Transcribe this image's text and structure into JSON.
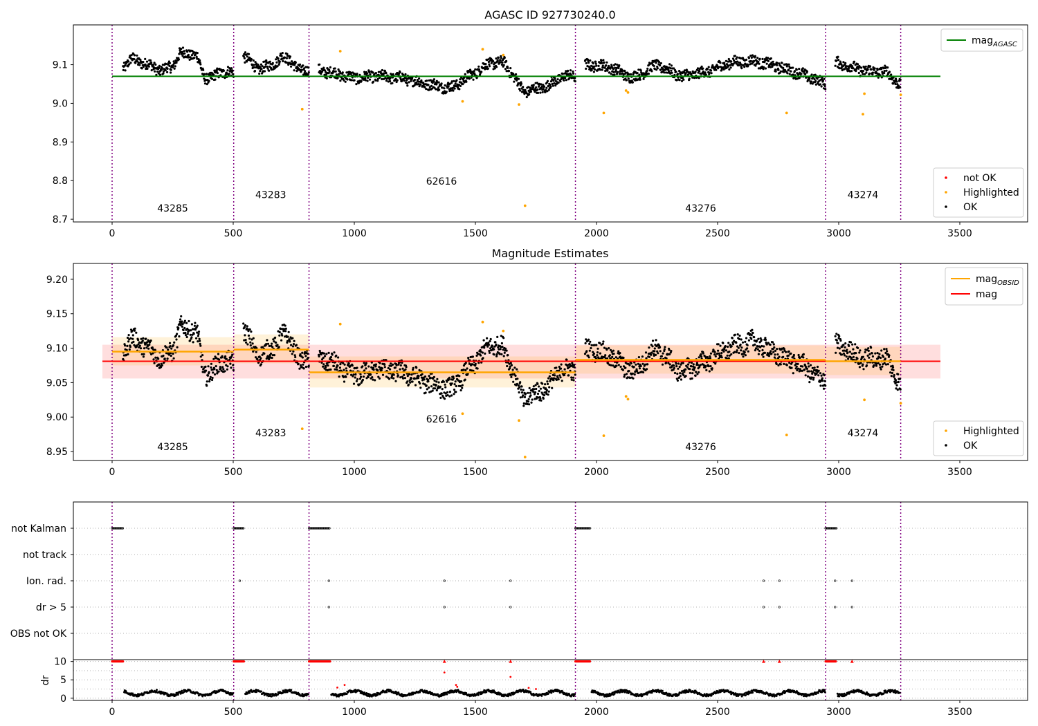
{
  "chart_data": [
    {
      "type": "scatter",
      "title": "AGASC ID 927730240.0",
      "xlim": [
        -160,
        3780
      ],
      "ylim": [
        8.693,
        9.203
      ],
      "xticks": [
        0,
        500,
        1000,
        1500,
        2000,
        2500,
        3000,
        3500
      ],
      "yticks": [
        8.7,
        8.8,
        8.9,
        9.0,
        9.1
      ],
      "obs_boundaries": [
        0,
        502,
        813,
        1913,
        2946,
        3256
      ],
      "obs_labels": [
        {
          "text": "43285",
          "x": 250,
          "y": 8.72
        },
        {
          "text": "43283",
          "x": 655,
          "y": 8.755
        },
        {
          "text": "62616",
          "x": 1360,
          "y": 8.79
        },
        {
          "text": "43276",
          "x": 2430,
          "y": 8.72
        },
        {
          "text": "43274",
          "x": 3100,
          "y": 8.755
        }
      ],
      "line": {
        "name": "mag_AGASC",
        "y": 9.07,
        "x": [
          0,
          3420
        ],
        "color": "#008000"
      },
      "highlighted": [
        [
          785,
          8.985
        ],
        [
          942,
          9.135
        ],
        [
          1447,
          9.005
        ],
        [
          1530,
          9.14
        ],
        [
          1615,
          9.125
        ],
        [
          1680,
          8.997
        ],
        [
          1705,
          8.735
        ],
        [
          2030,
          8.975
        ],
        [
          2122,
          9.033
        ],
        [
          2130,
          9.028
        ],
        [
          2785,
          8.975
        ],
        [
          3100,
          8.972
        ],
        [
          3106,
          9.025
        ],
        [
          3256,
          9.022
        ]
      ],
      "ok_trend": [
        [
          50,
          9.095
        ],
        [
          80,
          9.115
        ],
        [
          150,
          9.1
        ],
        [
          200,
          9.085
        ],
        [
          250,
          9.095
        ],
        [
          280,
          9.13
        ],
        [
          350,
          9.125
        ],
        [
          380,
          9.065
        ],
        [
          420,
          9.07
        ],
        [
          480,
          9.085
        ],
        [
          502,
          9.075
        ],
        [
          540,
          9.125
        ],
        [
          600,
          9.09
        ],
        [
          650,
          9.095
        ],
        [
          700,
          9.12
        ],
        [
          740,
          9.11
        ],
        [
          780,
          9.08
        ],
        [
          813,
          9.09
        ],
        [
          900,
          9.08
        ],
        [
          1000,
          9.065
        ],
        [
          1100,
          9.07
        ],
        [
          1200,
          9.065
        ],
        [
          1300,
          9.05
        ],
        [
          1400,
          9.04
        ],
        [
          1500,
          9.08
        ],
        [
          1560,
          9.105
        ],
        [
          1620,
          9.105
        ],
        [
          1700,
          9.03
        ],
        [
          1800,
          9.045
        ],
        [
          1860,
          9.07
        ],
        [
          1913,
          9.07
        ],
        [
          1960,
          9.1
        ],
        [
          2050,
          9.095
        ],
        [
          2150,
          9.065
        ],
        [
          2250,
          9.1
        ],
        [
          2350,
          9.07
        ],
        [
          2450,
          9.08
        ],
        [
          2550,
          9.105
        ],
        [
          2650,
          9.11
        ],
        [
          2750,
          9.095
        ],
        [
          2850,
          9.075
        ],
        [
          2946,
          9.05
        ],
        [
          2990,
          9.105
        ],
        [
          3100,
          9.085
        ],
        [
          3200,
          9.08
        ],
        [
          3256,
          9.045
        ]
      ],
      "legend_lines": [
        {
          "label": "mag",
          "sub": "AGASC",
          "color": "#008000"
        }
      ],
      "legend_points": [
        {
          "label": "not OK",
          "color": "#ff0000"
        },
        {
          "label": "Highlighted",
          "color": "#ffa500"
        },
        {
          "label": "OK",
          "color": "#000000"
        }
      ]
    },
    {
      "type": "scatter",
      "title": "Magnitude Estimates",
      "xlim": [
        -160,
        3780
      ],
      "ylim": [
        8.937,
        9.223
      ],
      "xticks": [
        0,
        500,
        1000,
        1500,
        2000,
        2500,
        3000,
        3500
      ],
      "yticks": [
        8.95,
        9.0,
        9.05,
        9.1,
        9.15,
        9.2
      ],
      "obs_boundaries": [
        0,
        502,
        813,
        1913,
        2946,
        3256
      ],
      "obs_labels": [
        {
          "text": "43285",
          "x": 250,
          "y": 8.952
        },
        {
          "text": "43283",
          "x": 655,
          "y": 8.972
        },
        {
          "text": "62616",
          "x": 1360,
          "y": 8.992
        },
        {
          "text": "43276",
          "x": 2430,
          "y": 8.952
        },
        {
          "text": "43274",
          "x": 3100,
          "y": 8.972
        }
      ],
      "mag": {
        "y": 9.081,
        "band": [
          9.056,
          9.105
        ],
        "x": [
          -40,
          3420
        ],
        "color": "#ff0000"
      },
      "mag_obsid": [
        {
          "x": [
            0,
            502
          ],
          "y": 9.095,
          "band": [
            9.075,
            9.116
          ]
        },
        {
          "x": [
            502,
            813
          ],
          "y": 9.098,
          "band": [
            9.078,
            9.12
          ]
        },
        {
          "x": [
            813,
            1913
          ],
          "y": 9.065,
          "band": [
            9.043,
            9.088
          ]
        },
        {
          "x": [
            1913,
            2946
          ],
          "y": 9.083,
          "band": [
            9.063,
            9.104
          ]
        },
        {
          "x": [
            2946,
            3256
          ],
          "y": 9.081,
          "band": [
            9.061,
            9.102
          ]
        }
      ],
      "highlighted": [
        [
          785,
          8.983
        ],
        [
          942,
          9.135
        ],
        [
          1447,
          9.005
        ],
        [
          1530,
          9.138
        ],
        [
          1615,
          9.125
        ],
        [
          1680,
          8.995
        ],
        [
          1705,
          8.942
        ],
        [
          2030,
          8.973
        ],
        [
          2122,
          9.03
        ],
        [
          2130,
          9.026
        ],
        [
          2785,
          8.974
        ],
        [
          3106,
          9.025
        ],
        [
          3256,
          9.02
        ]
      ],
      "ok_trend": [
        [
          50,
          9.095
        ],
        [
          80,
          9.115
        ],
        [
          150,
          9.1
        ],
        [
          200,
          9.085
        ],
        [
          250,
          9.095
        ],
        [
          280,
          9.13
        ],
        [
          350,
          9.125
        ],
        [
          380,
          9.06
        ],
        [
          420,
          9.07
        ],
        [
          480,
          9.085
        ],
        [
          502,
          9.075
        ],
        [
          540,
          9.13
        ],
        [
          600,
          9.09
        ],
        [
          650,
          9.095
        ],
        [
          700,
          9.12
        ],
        [
          740,
          9.11
        ],
        [
          780,
          9.075
        ],
        [
          813,
          9.09
        ],
        [
          900,
          9.08
        ],
        [
          1000,
          9.06
        ],
        [
          1100,
          9.07
        ],
        [
          1200,
          9.065
        ],
        [
          1300,
          9.05
        ],
        [
          1400,
          9.04
        ],
        [
          1500,
          9.08
        ],
        [
          1560,
          9.105
        ],
        [
          1620,
          9.1
        ],
        [
          1700,
          9.025
        ],
        [
          1800,
          9.045
        ],
        [
          1860,
          9.07
        ],
        [
          1913,
          9.065
        ],
        [
          1960,
          9.1
        ],
        [
          2050,
          9.09
        ],
        [
          2150,
          9.065
        ],
        [
          2250,
          9.1
        ],
        [
          2350,
          9.065
        ],
        [
          2450,
          9.08
        ],
        [
          2550,
          9.1
        ],
        [
          2650,
          9.11
        ],
        [
          2750,
          9.09
        ],
        [
          2850,
          9.075
        ],
        [
          2946,
          9.05
        ],
        [
          2990,
          9.105
        ],
        [
          3100,
          9.085
        ],
        [
          3200,
          9.085
        ],
        [
          3256,
          9.045
        ]
      ],
      "legend_lines": [
        {
          "label": "mag",
          "sub": "OBSID",
          "color": "#ffa500"
        },
        {
          "label": "mag",
          "sub": "",
          "color": "#ff0000"
        }
      ],
      "legend_points": [
        {
          "label": "Highlighted",
          "color": "#ffa500"
        },
        {
          "label": "OK",
          "color": "#000000"
        }
      ]
    },
    {
      "type": "scatter",
      "title": "",
      "xlim": [
        -160,
        3780
      ],
      "xticks": [
        0,
        500,
        1000,
        1500,
        2000,
        2500,
        3000,
        3500
      ],
      "obs_boundaries": [
        0,
        502,
        813,
        1913,
        2946,
        3256
      ],
      "flag_rows": [
        "not Kalman",
        "not track",
        "Ion. rad.",
        "dr > 5",
        "OBS not OK"
      ],
      "flag_segments": [
        {
          "row": "not Kalman",
          "x": [
            0,
            45
          ]
        },
        {
          "row": "not Kalman",
          "x": [
            502,
            545
          ]
        },
        {
          "row": "not Kalman",
          "x": [
            813,
            900
          ]
        },
        {
          "row": "not Kalman",
          "x": [
            1913,
            1975
          ]
        },
        {
          "row": "not Kalman",
          "x": [
            2946,
            2990
          ]
        }
      ],
      "flag_points": [
        {
          "row": "Ion. rad.",
          "x": [
            527,
            895,
            1372,
            1645,
            2690,
            2755,
            2985,
            3055
          ]
        },
        {
          "row": "dr > 5",
          "x": [
            895,
            1372,
            1645,
            2690,
            2755,
            2985,
            3055
          ]
        }
      ],
      "dr_ylim": [
        -0.6,
        10.5
      ],
      "dr_yticks": [
        0,
        5,
        10
      ],
      "dr_ylabel": "dr",
      "dr_high_segments": [
        [
          0,
          45
        ],
        [
          502,
          545
        ],
        [
          813,
          900
        ],
        [
          1913,
          1975
        ],
        [
          2946,
          2990
        ]
      ],
      "dr_high_points": [
        1372,
        1645,
        2690,
        2755,
        3055
      ],
      "dr_red_extra": [
        [
          1372,
          7.0
        ],
        [
          1420,
          3.6
        ],
        [
          1425,
          3.1
        ],
        [
          1645,
          5.8
        ],
        [
          1720,
          2.8
        ],
        [
          1750,
          2.5
        ],
        [
          960,
          3.6
        ],
        [
          930,
          2.9
        ]
      ],
      "dr_ok_ranges": [
        [
          45,
          502
        ],
        [
          545,
          813
        ],
        [
          900,
          1913
        ],
        [
          1975,
          2946
        ],
        [
          2990,
          3256
        ]
      ]
    }
  ]
}
